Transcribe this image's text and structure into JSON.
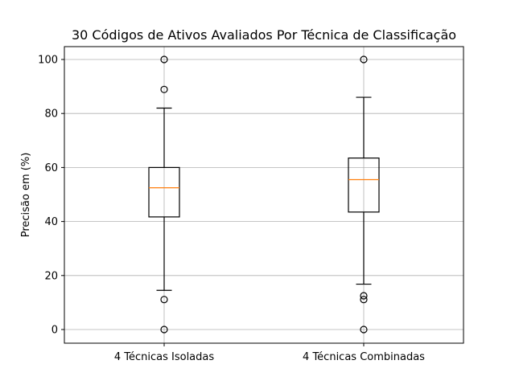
{
  "chart_data": {
    "type": "box",
    "title": "30 Códigos de Ativos Avaliados Por Técnica de Classificação",
    "xlabel": "",
    "ylabel": "Precisão em (%)",
    "ylim": [
      -5,
      105
    ],
    "yticks": [
      0,
      20,
      40,
      60,
      80,
      100
    ],
    "grid": true,
    "categories": [
      "4 Técnicas Isoladas",
      "4 Técnicas Combinadas"
    ],
    "boxes": [
      {
        "category": "4 Técnicas Isoladas",
        "whisker_low": 14.5,
        "q1": 41.7,
        "median": 52.5,
        "q3": 60.0,
        "whisker_high": 82.0,
        "outliers": [
          0,
          11.1,
          88.9,
          100
        ]
      },
      {
        "category": "4 Técnicas Combinadas",
        "whisker_low": 16.8,
        "q1": 43.5,
        "median": 55.5,
        "q3": 63.5,
        "whisker_high": 86.0,
        "outliers": [
          0,
          11.1,
          12.5,
          100
        ]
      }
    ],
    "colors": {
      "box": "#000000",
      "median": "#ff7f0e",
      "grid": "#b0b0b0",
      "outlier": "#000000"
    }
  }
}
